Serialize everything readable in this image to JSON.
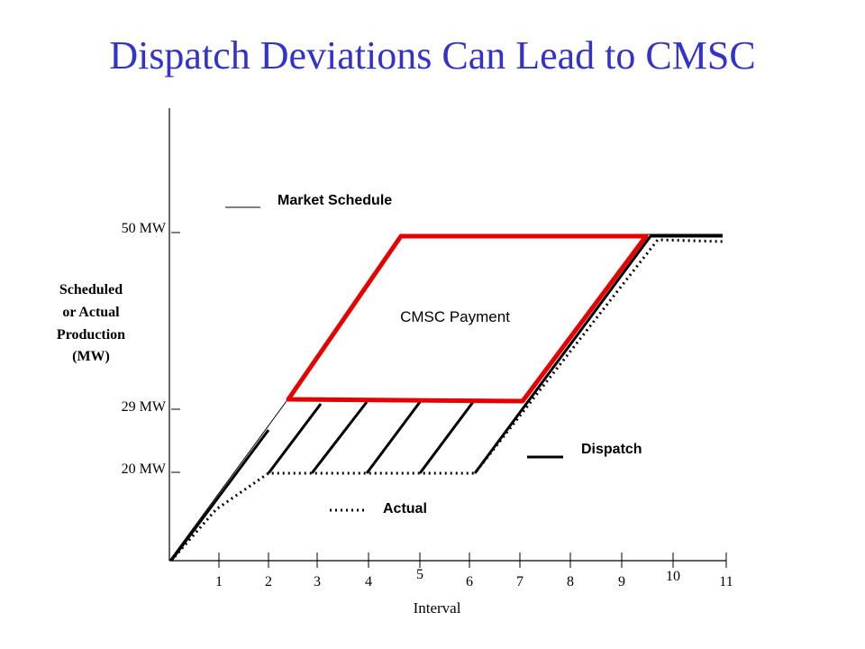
{
  "title": "Dispatch Deviations Can Lead to CMSC",
  "y_axis": {
    "label_lines": [
      "Scheduled",
      "or Actual",
      "Production",
      "(MW)"
    ],
    "ticks": [
      {
        "label": "50 MW",
        "value": 50
      },
      {
        "label": "29 MW",
        "value": 29
      },
      {
        "label": "20 MW",
        "value": 20
      }
    ]
  },
  "x_axis": {
    "label": "Interval",
    "ticks": [
      "1",
      "2",
      "3",
      "4",
      "5",
      "6",
      "7",
      "8",
      "9",
      "10",
      "11"
    ]
  },
  "legend": {
    "market_schedule": "Market Schedule",
    "dispatch": "Dispatch",
    "actual": "Actual"
  },
  "region_label": "CMSC Payment",
  "colors": {
    "title": "#3333cc",
    "cmsc_outline": "#e60000",
    "lines": "#000000"
  }
}
